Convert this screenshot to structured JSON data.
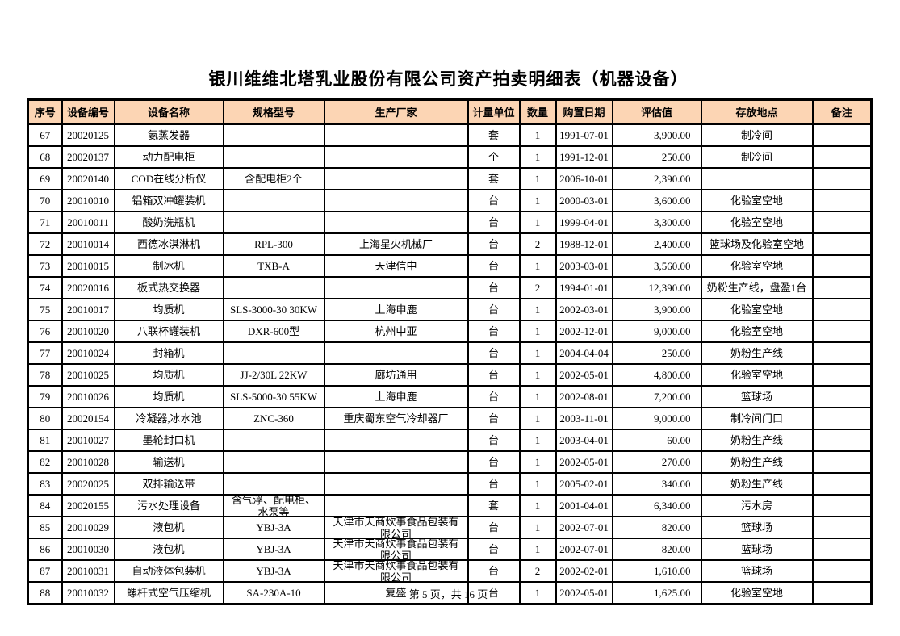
{
  "page": {
    "title": "银川维维北塔乳业股份有限公司资产拍卖明细表（机器设备）",
    "footer": "第 5 页，共 16 页"
  },
  "colors": {
    "header_bg": "#FCD5B4",
    "border": "#000000",
    "text": "#000000"
  },
  "table": {
    "columns": [
      "序号",
      "设备编号",
      "设备名称",
      "规格型号",
      "生产厂家",
      "计量单位",
      "数量",
      "购置日期",
      "评估值",
      "存放地点",
      "备注"
    ],
    "rows": [
      [
        "67",
        "20020125",
        "氨蒸发器",
        "",
        "",
        "套",
        "1",
        "1991-07-01",
        "3,900.00",
        "制冷间",
        ""
      ],
      [
        "68",
        "20020137",
        "动力配电柜",
        "",
        "",
        "个",
        "1",
        "1991-12-01",
        "250.00",
        "制冷间",
        ""
      ],
      [
        "69",
        "20020140",
        "COD在线分析仪",
        "含配电柜2个",
        "",
        "套",
        "1",
        "2006-10-01",
        "2,390.00",
        "",
        ""
      ],
      [
        "70",
        "20010010",
        "铝箱双冲罐装机",
        "",
        "",
        "台",
        "1",
        "2000-03-01",
        "3,600.00",
        "化验室空地",
        ""
      ],
      [
        "71",
        "20010011",
        "酸奶洗瓶机",
        "",
        "",
        "台",
        "1",
        "1999-04-01",
        "3,300.00",
        "化验室空地",
        ""
      ],
      [
        "72",
        "20010014",
        "西德冰淇淋机",
        "RPL-300",
        "上海星火机械厂",
        "台",
        "2",
        "1988-12-01",
        "2,400.00",
        "篮球场及化验室空地",
        ""
      ],
      [
        "73",
        "20010015",
        "制冰机",
        "TXB-A",
        "天津信中",
        "台",
        "1",
        "2003-03-01",
        "3,560.00",
        "化验室空地",
        ""
      ],
      [
        "74",
        "20020016",
        "板式热交换器",
        "",
        "",
        "台",
        "2",
        "1994-01-01",
        "12,390.00",
        "奶粉生产线，盘盈1台",
        ""
      ],
      [
        "75",
        "20010017",
        "均质机",
        "SLS-3000-30 30KW",
        "上海申鹿",
        "台",
        "1",
        "2002-03-01",
        "3,900.00",
        "化验室空地",
        ""
      ],
      [
        "76",
        "20010020",
        "八联杯罐装机",
        "DXR-600型",
        "杭州中亚",
        "台",
        "1",
        "2002-12-01",
        "9,000.00",
        "化验室空地",
        ""
      ],
      [
        "77",
        "20010024",
        "封箱机",
        "",
        "",
        "台",
        "1",
        "2004-04-04",
        "250.00",
        "奶粉生产线",
        ""
      ],
      [
        "78",
        "20010025",
        "均质机",
        "JJ-2/30L 22KW",
        "廊坊通用",
        "台",
        "1",
        "2002-05-01",
        "4,800.00",
        "化验室空地",
        ""
      ],
      [
        "79",
        "20010026",
        "均质机",
        "SLS-5000-30 55KW",
        "上海申鹿",
        "台",
        "1",
        "2002-08-01",
        "7,200.00",
        "篮球场",
        ""
      ],
      [
        "80",
        "20020154",
        "冷凝器,冰水池",
        "ZNC-360",
        "重庆蜀东空气冷却器厂",
        "台",
        "1",
        "2003-11-01",
        "9,000.00",
        "制冷间门口",
        ""
      ],
      [
        "81",
        "20010027",
        "墨轮封口机",
        "",
        "",
        "台",
        "1",
        "2003-04-01",
        "60.00",
        "奶粉生产线",
        ""
      ],
      [
        "82",
        "20010028",
        "输送机",
        "",
        "",
        "台",
        "1",
        "2002-05-01",
        "270.00",
        "奶粉生产线",
        ""
      ],
      [
        "83",
        "20020025",
        "双排输送带",
        "",
        "",
        "台",
        "1",
        "2005-02-01",
        "340.00",
        "奶粉生产线",
        ""
      ],
      [
        "84",
        "20020155",
        "污水处理设备",
        "含气浮、配电柜、水泵等",
        "",
        "套",
        "1",
        "2001-04-01",
        "6,340.00",
        "污水房",
        ""
      ],
      [
        "85",
        "20010029",
        "液包机",
        "YBJ-3A",
        "天津市天商炊事食品包装有限公司",
        "台",
        "1",
        "2002-07-01",
        "820.00",
        "篮球场",
        ""
      ],
      [
        "86",
        "20010030",
        "液包机",
        "YBJ-3A",
        "天津市天商炊事食品包装有限公司",
        "台",
        "1",
        "2002-07-01",
        "820.00",
        "篮球场",
        ""
      ],
      [
        "87",
        "20010031",
        "自动液体包装机",
        "YBJ-3A",
        "天津市天商炊事食品包装有限公司",
        "台",
        "2",
        "2002-02-01",
        "1,610.00",
        "篮球场",
        ""
      ],
      [
        "88",
        "20010032",
        "螺杆式空气压缩机",
        "SA-230A-10",
        "复盛",
        "台",
        "1",
        "2002-05-01",
        "1,625.00",
        "化验室空地",
        ""
      ]
    ]
  }
}
